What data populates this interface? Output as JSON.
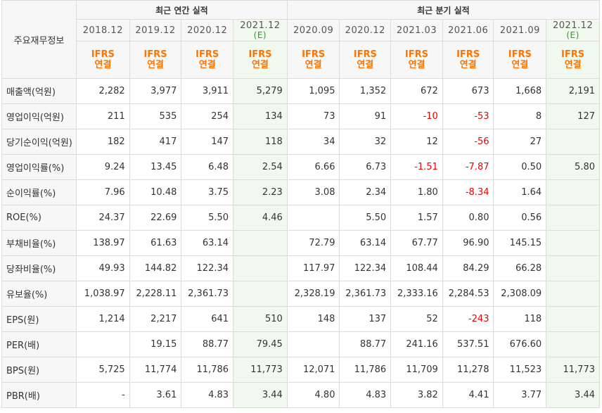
{
  "header": {
    "row_label_title": "주요재무정보",
    "annual_title": "최근 연간 실적",
    "quarter_title": "최근 분기 실적"
  },
  "periods": [
    {
      "label": "2018.12",
      "est": ""
    },
    {
      "label": "2019.12",
      "est": ""
    },
    {
      "label": "2020.12",
      "est": ""
    },
    {
      "label": "2021.12",
      "est": "(E)"
    },
    {
      "label": "2020.09",
      "est": ""
    },
    {
      "label": "2020.12",
      "est": ""
    },
    {
      "label": "2021.03",
      "est": ""
    },
    {
      "label": "2021.06",
      "est": ""
    },
    {
      "label": "2021.09",
      "est": ""
    },
    {
      "label": "2021.12",
      "est": "(E)"
    }
  ],
  "ifrs": {
    "line1": "IFRS",
    "line2": "연결"
  },
  "rows": [
    {
      "label": "매출액(억원)",
      "values": [
        "2,282",
        "3,977",
        "3,911",
        "5,279",
        "1,095",
        "1,352",
        "672",
        "673",
        "1,668",
        "2,191"
      ]
    },
    {
      "label": "영업이익(억원)",
      "values": [
        "211",
        "535",
        "254",
        "134",
        "73",
        "91",
        "-10",
        "-53",
        "8",
        "127"
      ]
    },
    {
      "label": "당기순이익(억원)",
      "values": [
        "182",
        "417",
        "147",
        "118",
        "34",
        "32",
        "12",
        "-56",
        "27",
        ""
      ]
    },
    {
      "label": "영업이익률(%)",
      "values": [
        "9.24",
        "13.45",
        "6.48",
        "2.54",
        "6.66",
        "6.73",
        "-1.51",
        "-7.87",
        "0.50",
        "5.80"
      ]
    },
    {
      "label": "순이익률(%)",
      "values": [
        "7.96",
        "10.48",
        "3.75",
        "2.23",
        "3.08",
        "2.34",
        "1.80",
        "-8.34",
        "1.64",
        ""
      ]
    },
    {
      "label": "ROE(%)",
      "values": [
        "24.37",
        "22.69",
        "5.50",
        "4.46",
        "",
        "5.50",
        "1.57",
        "0.80",
        "0.56",
        ""
      ]
    },
    {
      "label": "부채비율(%)",
      "values": [
        "138.97",
        "61.63",
        "63.14",
        "",
        "72.79",
        "63.14",
        "67.77",
        "96.90",
        "145.15",
        ""
      ]
    },
    {
      "label": "당좌비율(%)",
      "values": [
        "49.93",
        "144.82",
        "122.34",
        "",
        "117.97",
        "122.34",
        "108.44",
        "84.29",
        "66.28",
        ""
      ]
    },
    {
      "label": "유보율(%)",
      "values": [
        "1,038.97",
        "2,228.11",
        "2,361.73",
        "",
        "2,328.19",
        "2,361.73",
        "2,333.16",
        "2,284.53",
        "2,308.09",
        ""
      ]
    },
    {
      "label": "EPS(원)",
      "values": [
        "1,214",
        "2,217",
        "641",
        "510",
        "148",
        "137",
        "52",
        "-243",
        "118",
        ""
      ]
    },
    {
      "label": "PER(배)",
      "values": [
        "",
        "19.15",
        "88.77",
        "79.45",
        "",
        "88.77",
        "241.16",
        "537.51",
        "676.60",
        ""
      ]
    },
    {
      "label": "BPS(원)",
      "values": [
        "5,725",
        "11,774",
        "11,786",
        "11,773",
        "12,071",
        "11,786",
        "11,709",
        "11,278",
        "11,523",
        "11,773"
      ]
    },
    {
      "label": "PBR(배)",
      "values": [
        "-",
        "3.61",
        "4.83",
        "3.44",
        "4.80",
        "4.83",
        "3.82",
        "4.41",
        "3.77",
        "3.44"
      ]
    }
  ],
  "thick_rows_before": [
    3,
    9
  ]
}
